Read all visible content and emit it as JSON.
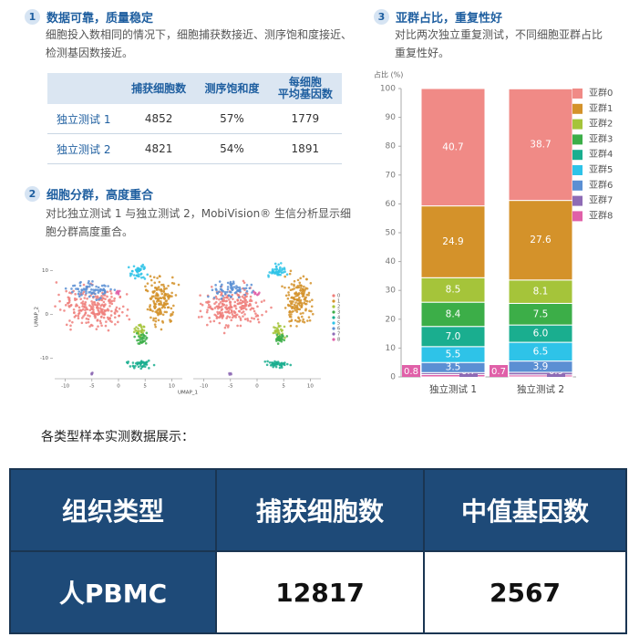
{
  "sections": [
    {
      "number": "1",
      "title": "数据可靠，质量稳定",
      "description": "细胞投入数相同的情况下，细胞捕获数接近、测序饱和度接近、检测基因数接近。",
      "table": {
        "columns": [
          "捕获细胞数",
          "测序饱和度",
          "每细胞\n平均基因数"
        ],
        "rows": [
          [
            "独立测试 1",
            "4852",
            "57%",
            "1779"
          ],
          [
            "独立测试 2",
            "4821",
            "54%",
            "1891"
          ]
        ]
      }
    },
    {
      "number": "2",
      "title": "细胞分群，高度重合",
      "description": "对比独立测试 1 与独立测试 2，MobiVision® 生信分析显示细胞分群高度重合。"
    },
    {
      "number": "3",
      "title": "亚群占比，重复性好",
      "description": "对比两次独立重复测试，不同细胞亚群占比重复性好。"
    }
  ],
  "chart_data": [
    {
      "type": "scatter",
      "xlabel": "UMAP_1",
      "ylabel": "UMAP_2",
      "xlim": [
        -12,
        12
      ],
      "ylim": [
        -14,
        13
      ],
      "xticks": [
        -10,
        -5,
        0,
        5,
        10
      ],
      "yticks": [
        10,
        0,
        -10
      ],
      "series": [
        {
          "name": "0",
          "color": "#ee7f7b"
        },
        {
          "name": "1",
          "color": "#d4922a"
        },
        {
          "name": "2",
          "color": "#a5c43a"
        },
        {
          "name": "3",
          "color": "#3cae48"
        },
        {
          "name": "4",
          "color": "#1aae8f"
        },
        {
          "name": "5",
          "color": "#2ec3e8"
        },
        {
          "name": "6",
          "color": "#5b8fd3"
        },
        {
          "name": "7",
          "color": "#8e6bb5"
        },
        {
          "name": "8",
          "color": "#e060a8"
        }
      ]
    },
    {
      "type": "stacked_bar",
      "ylabel": "占比 (%)",
      "ylim": [
        0,
        100
      ],
      "yticks": [
        0,
        10,
        20,
        30,
        40,
        50,
        60,
        70,
        80,
        90,
        100
      ],
      "categories": [
        "独立测试 1",
        "独立测试 2"
      ],
      "series": [
        {
          "name": "亚群0",
          "color": "#f08a86",
          "values": [
            40.7,
            38.7
          ]
        },
        {
          "name": "亚群1",
          "color": "#d4922a",
          "values": [
            24.9,
            27.6
          ]
        },
        {
          "name": "亚群2",
          "color": "#a5c43a",
          "values": [
            8.5,
            8.1
          ]
        },
        {
          "name": "亚群3",
          "color": "#3cae48",
          "values": [
            8.4,
            7.5
          ]
        },
        {
          "name": "亚群4",
          "color": "#1aae8f",
          "values": [
            7,
            6
          ],
          "value_labels": [
            "7.0",
            "6.0"
          ]
        },
        {
          "name": "亚群5",
          "color": "#2ec3e8",
          "values": [
            5.5,
            6.5
          ]
        },
        {
          "name": "亚群6",
          "color": "#5b8fd3",
          "values": [
            3.5,
            3.9
          ]
        },
        {
          "name": "亚群7",
          "color": "#8e6bb5",
          "values": [
            0.7,
            0.9
          ]
        },
        {
          "name": "亚群8",
          "color": "#e060a8",
          "values": [
            0.8,
            0.7
          ]
        }
      ]
    }
  ],
  "caption": "各类型样本实测数据展示：",
  "summary_table": {
    "columns": [
      "组织类型",
      "捕获细胞数",
      "中值基因数"
    ],
    "rows": [
      [
        "人PBMC",
        "12817",
        "2567"
      ]
    ]
  }
}
